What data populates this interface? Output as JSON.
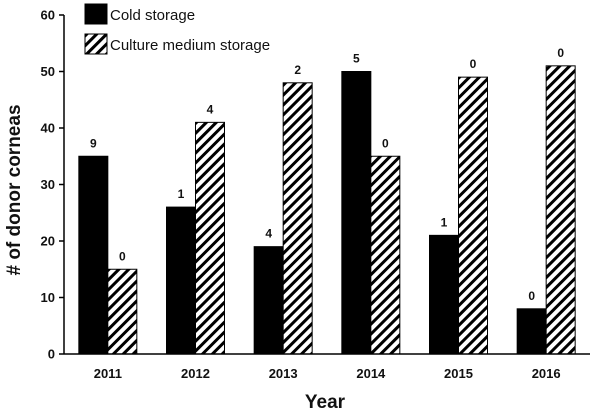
{
  "chart_data": {
    "type": "bar",
    "categories": [
      "2011",
      "2012",
      "2013",
      "2014",
      "2015",
      "2016"
    ],
    "series": [
      {
        "name": "Cold storage",
        "values": [
          35,
          26,
          19,
          50,
          21,
          8
        ],
        "labels": [
          "9",
          "1",
          "4",
          "5",
          "1",
          "0"
        ],
        "fill": "solid",
        "color": "#000000"
      },
      {
        "name": "Culture medium storage",
        "values": [
          15,
          41,
          48,
          35,
          49,
          51
        ],
        "labels": [
          "0",
          "4",
          "2",
          "0",
          "0",
          "0"
        ],
        "fill": "hatched",
        "color": "#000000"
      }
    ],
    "xlabel": "Year",
    "ylabel": "# of donor corneas",
    "ylim": [
      0,
      60
    ],
    "yticks": [
      "0",
      "10",
      "20",
      "30",
      "40",
      "50",
      "60"
    ],
    "grid": false,
    "legend_position": "top-left"
  }
}
